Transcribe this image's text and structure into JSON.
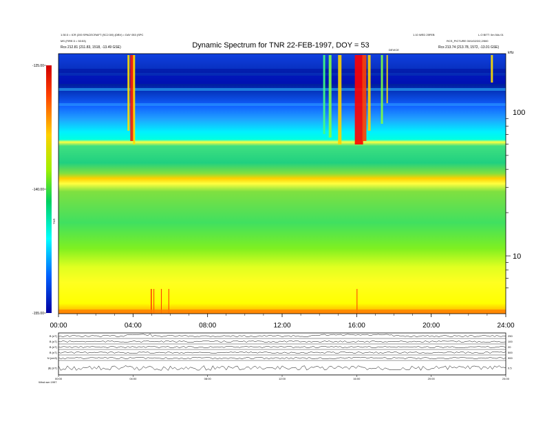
{
  "header": {
    "title": "Dynamic Spectrum for TNR 22-FEB-1997, DOY = 53",
    "meta_left_1": "1:30:3 = ICR (200 SPACECRAFT (SC2:3/0) (DBV) = DAY 053 (SPC",
    "meta_left_2": "MS (FIRE:3 = 53:53)",
    "meta_left_3": "Rcs    212.81 (211.83, 1518, -13.49 GSE)",
    "meta_right_1": "1.10 WED 25FEB",
    "meta_right_2": "L.O BITT: 0m 54s 01",
    "meta_right_3": "RCS_PICTURE 00/1/02/2/2,2/500",
    "meta_right_4": "Rcs    213.74 (213.78, 1572, -13.01 GSE)",
    "meta_center": "DEVICE",
    "unit_label": "kHz"
  },
  "chart_data": {
    "type": "heatmap",
    "title": "Dynamic Spectrum for TNR 22-FEB-1997, DOY = 53",
    "x_ticks": [
      "00:00",
      "04:00",
      "08:00",
      "12:00",
      "16:00",
      "20:00",
      "24:00"
    ],
    "x_range_hours": [
      0,
      24
    ],
    "y_scale": "log",
    "y_unit": "kHz",
    "y_ticks": [
      10,
      100
    ],
    "colorbar_ticks": [
      "-125.00",
      "-140.00",
      "-155.00"
    ],
    "colorbar_label": "TNR",
    "colorbar_range": [
      -155,
      -125
    ],
    "colors": {
      "high": "#ff0000",
      "upper": "#ffff00",
      "mid": "#00d060",
      "lower": "#00ffff",
      "low": "#0000a0"
    }
  },
  "strip_panels": {
    "left_labels": [
      "B (nT)",
      "B (nT)",
      "B (nT)",
      "B (nT)",
      "N (cm3)",
      "|B| (nT)"
    ],
    "right_labels": [
      "250",
      "100",
      "20",
      "500",
      "900",
      "0.5"
    ],
    "x_ticks": [
      "00:00",
      "04:00",
      "08:00",
      "12:00",
      "16:00",
      "20:00",
      "24:00"
    ],
    "footer": "Wind wm 1997"
  }
}
